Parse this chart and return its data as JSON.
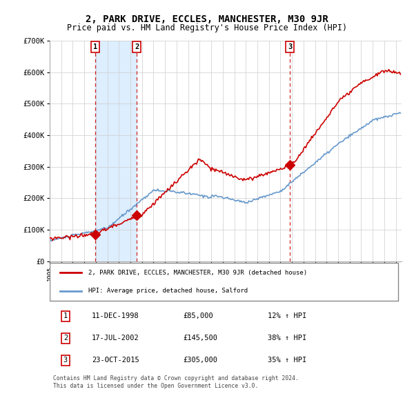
{
  "title": "2, PARK DRIVE, ECCLES, MANCHESTER, M30 9JR",
  "subtitle": "Price paid vs. HM Land Registry's House Price Index (HPI)",
  "red_label": "2, PARK DRIVE, ECCLES, MANCHESTER, M30 9JR (detached house)",
  "blue_label": "HPI: Average price, detached house, Salford",
  "transactions": [
    {
      "num": 1,
      "date": "11-DEC-1998",
      "price": 85000,
      "pct": "12%",
      "year_x": 1998.95
    },
    {
      "num": 2,
      "date": "17-JUL-2002",
      "price": 145500,
      "pct": "38%",
      "year_x": 2002.54
    },
    {
      "num": 3,
      "date": "23-OCT-2015",
      "price": 305000,
      "pct": "35%",
      "year_x": 2015.81
    }
  ],
  "vline_x": [
    1998.95,
    2002.54,
    2015.81
  ],
  "shade_regions": [
    [
      1998.95,
      2002.54
    ]
  ],
  "ylim": [
    0,
    700000
  ],
  "yticks": [
    0,
    100000,
    200000,
    300000,
    400000,
    500000,
    600000,
    700000
  ],
  "ytick_labels": [
    "£0",
    "£100K",
    "£200K",
    "£300K",
    "£400K",
    "£500K",
    "£600K",
    "£700K"
  ],
  "xlim_start": 1995.0,
  "xlim_end": 2025.5,
  "background_color": "#ffffff",
  "grid_color": "#cccccc",
  "red_color": "#cc0000",
  "blue_color": "#6699cc",
  "shade_color": "#ddeeff",
  "footnote": "Contains HM Land Registry data © Crown copyright and database right 2024.\nThis data is licensed under the Open Government Licence v3.0."
}
